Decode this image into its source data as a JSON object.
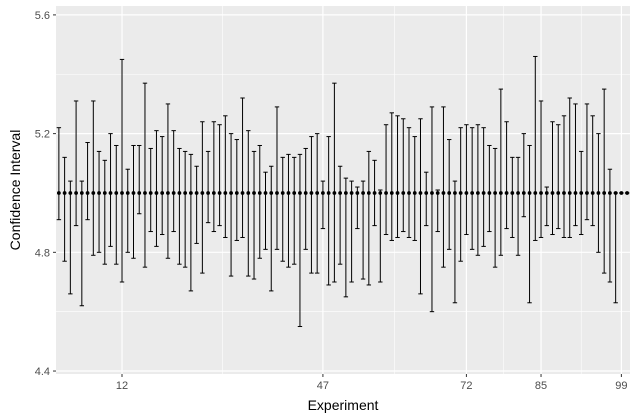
{
  "chart_data": {
    "type": "scatter",
    "xlabel": "Experiment",
    "ylabel": "Confidence Interval",
    "x_ticks": [
      12,
      47,
      72,
      85,
      99
    ],
    "y_ticks": [
      4.4,
      4.8,
      5.2,
      5.6
    ],
    "y_tick_labels": [
      "4.4",
      "4.8",
      "5.2",
      "5.6"
    ],
    "xlim": [
      0.5,
      100.5
    ],
    "ylim": [
      4.39,
      5.63
    ],
    "grid": true,
    "colors": {
      "panel": "#ebebeb",
      "grid": "#ffffff",
      "marks": "#000000"
    },
    "series": [
      {
        "x": [
          1,
          2,
          3,
          4,
          5,
          6,
          7,
          8,
          9,
          10,
          11,
          12,
          13,
          14,
          15,
          16,
          17,
          18,
          19,
          20,
          21,
          22,
          23,
          24,
          25,
          26,
          27,
          28,
          29,
          30,
          31,
          32,
          33,
          34,
          35,
          36,
          37,
          38,
          39,
          40,
          41,
          42,
          43,
          44,
          45,
          46,
          47,
          48,
          49,
          50,
          51,
          52,
          53,
          54,
          55,
          56,
          57,
          58,
          59,
          60,
          61,
          62,
          63,
          64,
          65,
          66,
          67,
          68,
          69,
          70,
          71,
          72,
          73,
          74,
          75,
          76,
          77,
          78,
          79,
          80,
          81,
          82,
          83,
          84,
          85,
          86,
          87,
          88,
          89,
          90,
          91,
          92,
          93,
          94,
          95,
          96,
          97,
          98,
          99,
          100
        ],
        "estimate": [
          5.0,
          5.0,
          5.0,
          5.0,
          5.0,
          5.0,
          5.0,
          5.0,
          5.0,
          5.0,
          5.0,
          5.0,
          5.0,
          5.0,
          5.0,
          5.0,
          5.0,
          5.0,
          5.0,
          5.0,
          5.0,
          5.0,
          5.0,
          5.0,
          5.0,
          5.0,
          5.0,
          5.0,
          5.0,
          5.0,
          5.0,
          5.0,
          5.0,
          5.0,
          5.0,
          5.0,
          5.0,
          5.0,
          5.0,
          5.0,
          5.0,
          5.0,
          5.0,
          5.0,
          5.0,
          5.0,
          5.0,
          5.0,
          5.0,
          5.0,
          5.0,
          5.0,
          5.0,
          5.0,
          5.0,
          5.0,
          5.0,
          5.0,
          5.0,
          5.0,
          5.0,
          5.0,
          5.0,
          5.0,
          5.0,
          5.0,
          5.0,
          5.0,
          5.0,
          5.0,
          5.0,
          5.0,
          5.0,
          5.0,
          5.0,
          5.0,
          5.0,
          5.0,
          5.0,
          5.0,
          5.0,
          5.0,
          5.0,
          5.0,
          5.0,
          5.0,
          5.0,
          5.0,
          5.0,
          5.0,
          5.0,
          5.0,
          5.0,
          5.0,
          5.0,
          5.0,
          5.0,
          5.0,
          5.0,
          5.0
        ],
        "upper": [
          5.22,
          5.12,
          5.04,
          5.31,
          5.04,
          5.17,
          5.31,
          5.14,
          5.11,
          5.2,
          5.16,
          5.45,
          5.08,
          5.16,
          5.16,
          5.37,
          5.15,
          5.21,
          5.19,
          5.3,
          5.21,
          5.15,
          5.14,
          5.13,
          5.09,
          5.24,
          5.14,
          5.24,
          5.23,
          5.26,
          5.2,
          5.18,
          5.32,
          5.21,
          5.14,
          5.16,
          5.07,
          5.09,
          5.29,
          5.12,
          5.13,
          5.12,
          5.13,
          5.15,
          5.19,
          5.2,
          5.04,
          5.19,
          5.37,
          5.09,
          5.05,
          5.04,
          5.02,
          5.04,
          5.14,
          5.11,
          5.01,
          5.23,
          5.27,
          5.26,
          5.25,
          5.22,
          5.19,
          5.25,
          5.07,
          5.29,
          5.01,
          5.29,
          5.18,
          5.04,
          5.22,
          5.23,
          5.22,
          5.23,
          5.22,
          5.16,
          5.15,
          5.35,
          5.24,
          5.12,
          5.12,
          5.2,
          5.16,
          5.46,
          5.31,
          5.02,
          5.24,
          5.23,
          5.26,
          5.32,
          5.3,
          5.14,
          5.3,
          5.26,
          5.2,
          5.35,
          5.08,
          5.0,
          5.0,
          5.0
        ],
        "lower": [
          4.91,
          4.77,
          4.66,
          4.89,
          4.62,
          4.91,
          4.79,
          4.8,
          4.76,
          4.82,
          4.76,
          4.7,
          4.8,
          4.78,
          4.93,
          4.75,
          4.87,
          4.82,
          4.86,
          4.78,
          4.87,
          4.76,
          4.75,
          4.67,
          4.83,
          4.73,
          4.9,
          4.87,
          4.89,
          4.85,
          4.72,
          4.84,
          4.85,
          4.72,
          4.71,
          4.78,
          4.81,
          4.67,
          4.81,
          4.77,
          4.75,
          4.76,
          4.55,
          4.81,
          4.73,
          4.73,
          4.88,
          4.69,
          4.7,
          4.76,
          4.65,
          4.7,
          4.88,
          4.71,
          4.69,
          4.89,
          4.7,
          4.86,
          4.84,
          4.85,
          4.87,
          4.85,
          4.84,
          4.66,
          4.89,
          4.6,
          4.87,
          4.75,
          4.81,
          4.63,
          4.77,
          4.86,
          4.81,
          4.79,
          4.82,
          4.87,
          4.75,
          4.79,
          4.88,
          4.85,
          4.79,
          4.92,
          4.63,
          4.84,
          4.85,
          4.89,
          4.86,
          4.88,
          4.85,
          4.85,
          4.89,
          4.86,
          4.91,
          4.89,
          4.8,
          4.73,
          4.7,
          4.63,
          5.0,
          5.0
        ]
      }
    ]
  }
}
